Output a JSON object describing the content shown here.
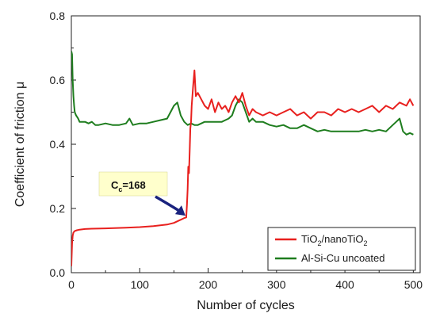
{
  "chart_data": {
    "type": "line",
    "title": "",
    "xlabel": "Number of cycles",
    "ylabel": "Coefficient of friction μ",
    "xlim": [
      0,
      510
    ],
    "ylim": [
      0,
      0.8
    ],
    "x_ticks": [
      0,
      100,
      200,
      300,
      400,
      500
    ],
    "y_ticks": [
      0.0,
      0.2,
      0.4,
      0.6,
      0.8
    ],
    "x_tick_labels": [
      "0",
      "100",
      "200",
      "300",
      "400",
      "500"
    ],
    "y_tick_labels": [
      "0.0",
      "0.2",
      "0.4",
      "0.6",
      "0.8"
    ],
    "grid": false,
    "legend_position": "bottom-right",
    "series": [
      {
        "name": "TiO2/nanoTiO2",
        "legend_main": "TiO",
        "legend_sub1": "2",
        "legend_mid": "/nanoTiO",
        "legend_sub2": "2",
        "color": "#e8201e",
        "x": [
          0,
          1,
          2,
          3,
          5,
          8,
          12,
          20,
          30,
          50,
          80,
          100,
          120,
          140,
          150,
          160,
          165,
          168,
          169,
          170,
          171,
          172,
          173,
          174,
          175,
          176,
          178,
          180,
          182,
          185,
          190,
          195,
          200,
          205,
          210,
          215,
          220,
          225,
          230,
          235,
          240,
          245,
          250,
          255,
          260,
          265,
          270,
          280,
          290,
          300,
          310,
          320,
          330,
          340,
          350,
          360,
          370,
          380,
          390,
          400,
          410,
          420,
          430,
          440,
          450,
          460,
          470,
          480,
          490,
          495,
          500
        ],
        "y": [
          0.02,
          0.09,
          0.115,
          0.125,
          0.13,
          0.132,
          0.134,
          0.136,
          0.137,
          0.138,
          0.14,
          0.142,
          0.145,
          0.15,
          0.155,
          0.165,
          0.17,
          0.172,
          0.21,
          0.26,
          0.33,
          0.31,
          0.38,
          0.45,
          0.47,
          0.52,
          0.58,
          0.63,
          0.55,
          0.56,
          0.54,
          0.52,
          0.51,
          0.54,
          0.5,
          0.53,
          0.51,
          0.52,
          0.5,
          0.53,
          0.55,
          0.53,
          0.56,
          0.52,
          0.49,
          0.51,
          0.5,
          0.49,
          0.5,
          0.49,
          0.5,
          0.51,
          0.49,
          0.5,
          0.48,
          0.5,
          0.5,
          0.49,
          0.51,
          0.5,
          0.51,
          0.5,
          0.51,
          0.52,
          0.5,
          0.52,
          0.51,
          0.53,
          0.52,
          0.54,
          0.52
        ]
      },
      {
        "name": "Al-Si-Cu uncoated",
        "color": "#1e7d1e",
        "x": [
          0,
          1,
          2,
          3,
          4,
          5,
          7,
          10,
          12,
          15,
          20,
          25,
          30,
          35,
          40,
          50,
          60,
          70,
          80,
          85,
          90,
          100,
          110,
          120,
          130,
          140,
          145,
          150,
          155,
          160,
          165,
          170,
          175,
          180,
          185,
          190,
          195,
          200,
          205,
          210,
          215,
          220,
          225,
          230,
          235,
          240,
          245,
          250,
          255,
          260,
          265,
          270,
          280,
          290,
          300,
          310,
          320,
          330,
          340,
          350,
          360,
          370,
          380,
          390,
          400,
          410,
          420,
          430,
          440,
          450,
          460,
          470,
          475,
          480,
          485,
          490,
          495,
          500
        ],
        "y": [
          0.69,
          0.68,
          0.6,
          0.55,
          0.52,
          0.5,
          0.49,
          0.48,
          0.47,
          0.47,
          0.47,
          0.465,
          0.47,
          0.46,
          0.46,
          0.465,
          0.46,
          0.46,
          0.465,
          0.48,
          0.46,
          0.465,
          0.465,
          0.47,
          0.475,
          0.48,
          0.5,
          0.52,
          0.53,
          0.49,
          0.47,
          0.46,
          0.465,
          0.46,
          0.46,
          0.465,
          0.47,
          0.47,
          0.47,
          0.47,
          0.47,
          0.47,
          0.475,
          0.48,
          0.49,
          0.52,
          0.54,
          0.53,
          0.5,
          0.47,
          0.48,
          0.47,
          0.47,
          0.46,
          0.455,
          0.46,
          0.45,
          0.45,
          0.46,
          0.45,
          0.44,
          0.445,
          0.44,
          0.44,
          0.44,
          0.44,
          0.44,
          0.445,
          0.44,
          0.445,
          0.44,
          0.46,
          0.47,
          0.48,
          0.44,
          0.43,
          0.435,
          0.43
        ]
      }
    ],
    "annotations": [
      {
        "label_main": "C",
        "label_sub": "c",
        "label_value": "=168",
        "target_x": 168,
        "target_y": 0.175,
        "box_color": "#ffffcc",
        "arrow_color": "#1a237e"
      }
    ]
  }
}
